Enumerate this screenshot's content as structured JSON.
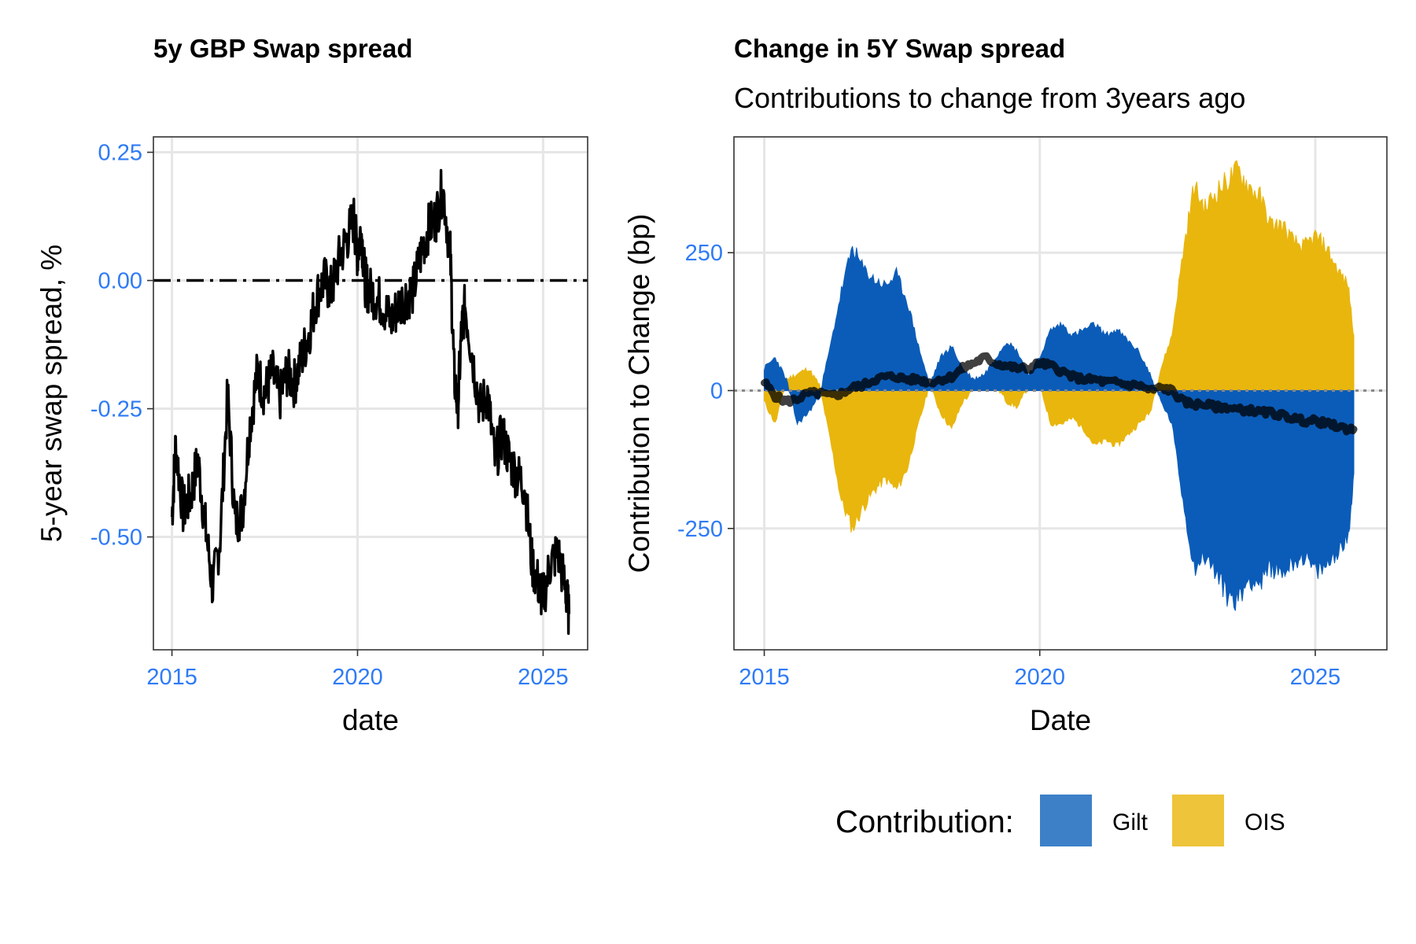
{
  "left_panel": {
    "title": "5y GBP Swap spread",
    "xlabel": "date",
    "ylabel": "5-year swap spread, %",
    "x_ticks": [
      "2015",
      "2020",
      "2025"
    ],
    "y_ticks": [
      "0.25",
      "0.00",
      "-0.25",
      "-0.50"
    ]
  },
  "right_panel": {
    "title": "Change in 5Y Swap spread",
    "subtitle": "Contributions to change from 3years ago",
    "xlabel": "Date",
    "ylabel": "Contribution to Change (bp)",
    "x_ticks": [
      "2015",
      "2020",
      "2025"
    ],
    "y_ticks": [
      "250",
      "0",
      "-250"
    ]
  },
  "legend": {
    "title": "Contribution:",
    "items": [
      {
        "label": "Gilt",
        "color": "#0b5cb8"
      },
      {
        "label": "OIS",
        "color": "#e9b60e"
      }
    ]
  },
  "colors": {
    "tick_label": "#2f7bf5",
    "line": "#000000",
    "gilt": "#0b5cb8",
    "ois": "#e9b60e",
    "grid": "#e6e6e6"
  },
  "chart_data": [
    {
      "type": "line",
      "title": "5y GBP Swap spread",
      "xlabel": "date",
      "ylabel": "5-year swap spread, %",
      "xlim": [
        2014.5,
        2026.2
      ],
      "ylim": [
        -0.72,
        0.28
      ],
      "grid": true,
      "reference_line": {
        "y": 0,
        "style": "dash-dot"
      },
      "series": [
        {
          "x": [
            2015.0,
            2015.1,
            2015.3,
            2015.5,
            2015.7,
            2015.9,
            2016.1,
            2016.3,
            2016.5,
            2016.7,
            2016.9,
            2017.1,
            2017.3,
            2017.5,
            2017.7,
            2017.9,
            2018.1,
            2018.3,
            2018.5,
            2018.7,
            2018.9,
            2019.1,
            2019.3,
            2019.5,
            2019.7,
            2019.9,
            2020.0,
            2020.1,
            2020.2,
            2020.3,
            2020.5,
            2020.7,
            2020.9,
            2021.1,
            2021.3,
            2021.5,
            2021.7,
            2021.9,
            2022.1,
            2022.3,
            2022.5,
            2022.6,
            2022.7,
            2022.8,
            2022.9,
            2023.1,
            2023.3,
            2023.5,
            2023.7,
            2023.9,
            2024.1,
            2024.3,
            2024.5,
            2024.7,
            2024.9,
            2025.0,
            2025.2,
            2025.4,
            2025.6,
            2025.7
          ],
          "y": [
            -0.46,
            -0.32,
            -0.45,
            -0.42,
            -0.35,
            -0.48,
            -0.6,
            -0.5,
            -0.22,
            -0.47,
            -0.45,
            -0.28,
            -0.18,
            -0.22,
            -0.18,
            -0.23,
            -0.18,
            -0.2,
            -0.15,
            -0.1,
            -0.03,
            0.0,
            -0.02,
            0.04,
            0.08,
            0.12,
            0.05,
            0.1,
            0.0,
            -0.02,
            -0.03,
            -0.05,
            -0.08,
            -0.05,
            -0.03,
            -0.02,
            0.05,
            0.1,
            0.12,
            0.18,
            0.05,
            -0.18,
            -0.25,
            -0.1,
            -0.05,
            -0.15,
            -0.25,
            -0.22,
            -0.35,
            -0.3,
            -0.35,
            -0.38,
            -0.4,
            -0.55,
            -0.6,
            -0.62,
            -0.55,
            -0.53,
            -0.6,
            -0.65
          ]
        }
      ]
    },
    {
      "type": "area",
      "title": "Change in 5Y Swap spread",
      "subtitle": "Contributions to change from 3years ago",
      "xlabel": "Date",
      "ylabel": "Contribution to Change (bp)",
      "xlim": [
        2014.45,
        2026.3
      ],
      "ylim": [
        -470,
        460
      ],
      "grid": true,
      "legend_position": "bottom",
      "x": [
        2015.0,
        2015.2,
        2015.4,
        2015.6,
        2015.8,
        2016.0,
        2016.2,
        2016.4,
        2016.6,
        2016.8,
        2017.0,
        2017.2,
        2017.4,
        2017.6,
        2017.8,
        2018.0,
        2018.2,
        2018.4,
        2018.6,
        2018.8,
        2019.0,
        2019.2,
        2019.4,
        2019.6,
        2019.8,
        2020.0,
        2020.2,
        2020.4,
        2020.6,
        2020.8,
        2021.0,
        2021.2,
        2021.4,
        2021.6,
        2021.8,
        2022.0,
        2022.2,
        2022.4,
        2022.6,
        2022.8,
        2023.0,
        2023.2,
        2023.4,
        2023.6,
        2023.8,
        2024.0,
        2024.2,
        2024.4,
        2024.6,
        2024.8,
        2025.0,
        2025.2,
        2025.4,
        2025.6,
        2025.7
      ],
      "series": [
        {
          "name": "Gilt",
          "values": [
            40,
            60,
            20,
            -60,
            -40,
            -10,
            80,
            180,
            260,
            220,
            200,
            190,
            210,
            160,
            80,
            10,
            60,
            80,
            40,
            20,
            30,
            60,
            90,
            70,
            30,
            60,
            110,
            120,
            100,
            110,
            120,
            100,
            110,
            90,
            70,
            30,
            -20,
            -60,
            -200,
            -320,
            -300,
            -330,
            -370,
            -380,
            -340,
            -350,
            -320,
            -330,
            -310,
            -300,
            -330,
            -320,
            -290,
            -270,
            -150
          ]
        },
        {
          "name": "OIS",
          "values": [
            -20,
            -60,
            20,
            30,
            40,
            10,
            -90,
            -200,
            -250,
            -210,
            -180,
            -160,
            -180,
            -140,
            -60,
            10,
            -40,
            -70,
            -20,
            0,
            20,
            10,
            -20,
            -30,
            10,
            10,
            -60,
            -60,
            -50,
            -70,
            -100,
            -90,
            -100,
            -80,
            -60,
            -40,
            40,
            100,
            250,
            370,
            330,
            360,
            380,
            400,
            370,
            350,
            300,
            300,
            270,
            260,
            280,
            260,
            220,
            190,
            100
          ]
        },
        {
          "name": "Total change",
          "values": [
            15,
            -10,
            -20,
            -15,
            -5,
            -5,
            -10,
            -5,
            5,
            10,
            20,
            25,
            25,
            20,
            20,
            15,
            20,
            25,
            40,
            50,
            60,
            50,
            45,
            40,
            40,
            50,
            45,
            35,
            25,
            20,
            20,
            15,
            15,
            10,
            10,
            0,
            5,
            0,
            -20,
            -25,
            -25,
            -30,
            -30,
            -35,
            -35,
            -40,
            -40,
            -45,
            -50,
            -55,
            -55,
            -60,
            -65,
            -70,
            -70
          ]
        }
      ]
    }
  ]
}
